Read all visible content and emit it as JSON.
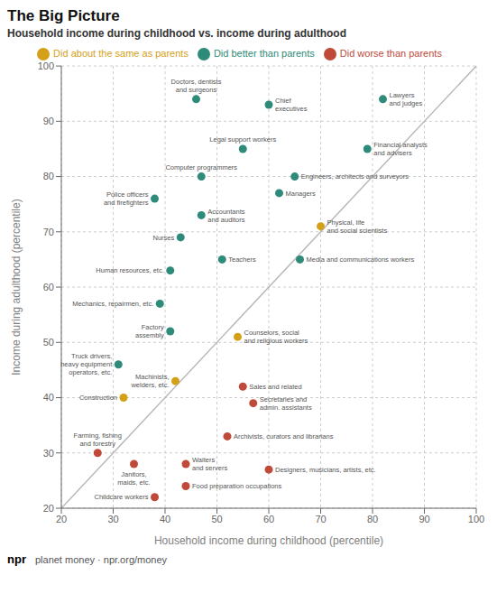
{
  "chart_data": {
    "type": "scatter",
    "title": "The Big Picture",
    "subtitle": "Household income during childhood vs. income during adulthood",
    "xlabel": "Household income during childhood (percentile)",
    "ylabel": "Income during adulthood (percentile)",
    "xlim": [
      20,
      100
    ],
    "ylim": [
      20,
      100
    ],
    "xticks": [
      20,
      30,
      40,
      50,
      60,
      70,
      80,
      90,
      100
    ],
    "yticks": [
      20,
      30,
      40,
      50,
      60,
      70,
      80,
      90,
      100
    ],
    "grid": true,
    "legend": "top",
    "annotations": [
      "npr",
      "planet money  ·  npr.org/money"
    ],
    "series": [
      {
        "name": "Did better than parents",
        "color": "#2e8b7a",
        "x": [
          46,
          60,
          82,
          55,
          79,
          47,
          65,
          38,
          47,
          62,
          43,
          51,
          41,
          66,
          39,
          31,
          41
        ],
        "y": [
          94,
          93,
          94,
          85,
          85,
          80,
          80,
          76,
          73,
          77,
          69,
          65,
          63,
          65,
          57,
          46,
          52
        ],
        "labels": [
          "Doctors, dentists\nand surgeons",
          "Chief\nexecutives",
          "Lawyers\nand judges",
          "Legal support workers",
          "Financial analysts\nand advisers",
          "Computer programmers",
          "Engineers, architects and surveyors",
          "Police officers\nand firefighters",
          "Accountants\nand auditors",
          "Managers",
          "Nurses",
          "Teachers",
          "Human resources, etc.",
          "Media and communications workers",
          "Mechanics, repairmen, etc.",
          "Truck drivers,\nheavy equipment\noperators, etc.",
          "Factory\nassembly"
        ]
      },
      {
        "name": "Did about the same as parents",
        "color": "#d4a017",
        "x": [
          70,
          54,
          32,
          42
        ],
        "y": [
          71,
          51,
          40,
          43
        ],
        "labels": [
          "Physical, life\nand social scientists",
          "Counselors, social\nand religious workers",
          "Construction",
          "Machinists,\nwelders, etc."
        ]
      },
      {
        "name": "Did worse than parents",
        "color": "#c04a3a",
        "x": [
          55,
          57,
          27,
          34,
          44,
          52,
          60,
          44,
          38
        ],
        "y": [
          42,
          39,
          30,
          28,
          28,
          33,
          27,
          24,
          22
        ],
        "labels": [
          "Sales and related",
          "Secretaries and\nadmin. assistants",
          "Farming, fishing\nand forestry",
          "Janitors,\nmaids, etc.",
          "Waiters\nand servers",
          "Archivists, curators and librarians",
          "Designers, musicians, artists, etc.",
          "Food preparation occupations",
          "Childcare workers"
        ]
      }
    ]
  }
}
